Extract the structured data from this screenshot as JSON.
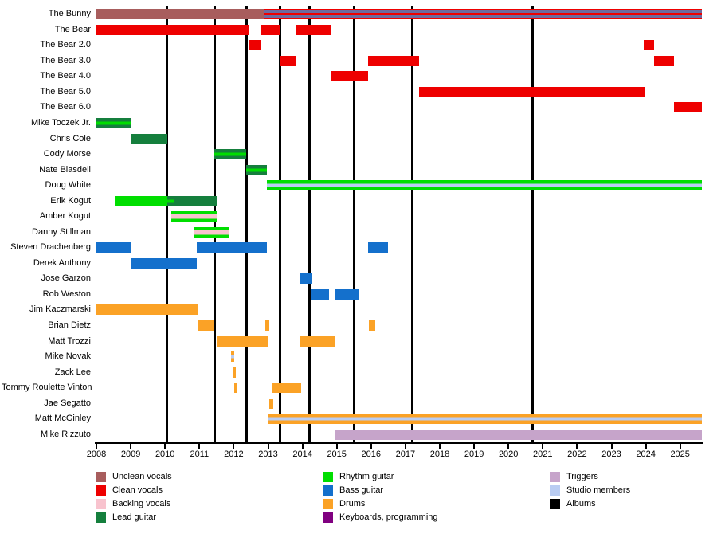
{
  "chart_data": {
    "type": "timeline",
    "description": "Band line-up timeline (Gantt-style) of members and roles over time",
    "x_axis": {
      "start": 2008,
      "end": 2025.64,
      "tick_years": [
        2008,
        2009,
        2010,
        2011,
        2012,
        2013,
        2014,
        2015,
        2016,
        2017,
        2018,
        2019,
        2020,
        2021,
        2022,
        2023,
        2024,
        2025
      ]
    },
    "palette": {
      "unclean": "#A85D5D",
      "clean": "#EE0000",
      "backing": "#F8C3CE",
      "lead": "#157F3D",
      "rhythm": "#00DE00",
      "bass": "#1470CC",
      "drums": "#FBA226",
      "keys": "#800080",
      "triggers": "#C6A4CA",
      "studio": "#B9CCF2",
      "albums": "#000000",
      "slate": "#6E6A9E"
    },
    "styles": {
      "unclean_solid": [
        [
          "unclean",
          1
        ]
      ],
      "clean_solid": [
        [
          "clean",
          1
        ]
      ],
      "bunny_late": [
        [
          "clean",
          0.1
        ],
        [
          "slate",
          0.27
        ],
        [
          "clean",
          0.26
        ],
        [
          "slate",
          0.27
        ],
        [
          "clean",
          0.1
        ]
      ],
      "lead_solid": [
        [
          "lead",
          1
        ]
      ],
      "lead_rhythm": [
        [
          "lead",
          0.36
        ],
        [
          "rhythm",
          0.28
        ],
        [
          "lead",
          0.36
        ]
      ],
      "rhythm_solid": [
        [
          "rhythm",
          1
        ]
      ],
      "rhythm_studio": [
        [
          "rhythm",
          0.36
        ],
        [
          "studio",
          0.28
        ],
        [
          "rhythm",
          0.36
        ]
      ],
      "rhythm_backing": [
        [
          "rhythm",
          0.28
        ],
        [
          "backing",
          0.44
        ],
        [
          "rhythm",
          0.28
        ]
      ],
      "bass_solid": [
        [
          "bass",
          1
        ]
      ],
      "drums_solid": [
        [
          "drums",
          1
        ]
      ],
      "drums_studio": [
        [
          "drums",
          0.36
        ],
        [
          "studio",
          0.28
        ],
        [
          "drums",
          0.36
        ]
      ],
      "triggers_solid": [
        [
          "triggers",
          1
        ]
      ]
    },
    "album_lines_years": [
      2010.05,
      2011.44,
      2012.37,
      2013.34,
      2014.2,
      2015.5,
      2017.19,
      2020.71
    ],
    "members": [
      {
        "name": "The Bunny",
        "bars": [
          [
            2008.0,
            2012.9,
            "unclean_solid"
          ],
          [
            2012.9,
            2025.64,
            "bunny_late"
          ]
        ]
      },
      {
        "name": "The Bear",
        "bars": [
          [
            2008.0,
            2012.44,
            "clean_solid"
          ],
          [
            2012.81,
            2013.34,
            "clean_solid"
          ],
          [
            2013.81,
            2014.85,
            "clean_solid"
          ]
        ]
      },
      {
        "name": "The Bear 2.0",
        "bars": [
          [
            2012.44,
            2012.81,
            "clean_solid"
          ],
          [
            2023.93,
            2024.24,
            "clean_solid"
          ]
        ]
      },
      {
        "name": "The Bear 3.0",
        "bars": [
          [
            2013.34,
            2013.81,
            "clean_solid"
          ],
          [
            2015.92,
            2017.4,
            "clean_solid"
          ],
          [
            2024.24,
            2024.81,
            "clean_solid"
          ]
        ]
      },
      {
        "name": "The Bear 4.0",
        "bars": [
          [
            2014.85,
            2015.92,
            "clean_solid"
          ]
        ]
      },
      {
        "name": "The Bear 5.0",
        "bars": [
          [
            2017.4,
            2023.96,
            "clean_solid"
          ]
        ]
      },
      {
        "name": "The Bear 6.0",
        "bars": [
          [
            2024.81,
            2025.64,
            "clean_solid"
          ]
        ]
      },
      {
        "name": "Mike Toczek Jr.",
        "bars": [
          [
            2008.0,
            2009.0,
            "lead_rhythm"
          ]
        ]
      },
      {
        "name": "Chris Cole",
        "bars": [
          [
            2009.0,
            2010.05,
            "lead_solid"
          ]
        ]
      },
      {
        "name": "Cody Morse",
        "bars": [
          [
            2011.44,
            2012.36,
            "lead_rhythm"
          ]
        ]
      },
      {
        "name": "Nate Blasdell",
        "bars": [
          [
            2012.36,
            2012.96,
            "lead_rhythm"
          ]
        ]
      },
      {
        "name": "Doug White",
        "bars": [
          [
            2012.96,
            2025.64,
            "rhythm_studio"
          ]
        ]
      },
      {
        "name": "Erik Kogut",
        "bars": [
          [
            2008.53,
            2010.05,
            "rhythm_solid"
          ],
          [
            2010.05,
            2010.26,
            "lead_rhythm"
          ],
          [
            2010.26,
            2011.5,
            "lead_solid"
          ]
        ]
      },
      {
        "name": "Amber Kogut",
        "bars": [
          [
            2010.17,
            2011.5,
            "rhythm_backing"
          ]
        ]
      },
      {
        "name": "Danny Stillman",
        "bars": [
          [
            2010.86,
            2011.88,
            "rhythm_backing"
          ]
        ]
      },
      {
        "name": "Steven Drachenberg",
        "bars": [
          [
            2008.0,
            2009.0,
            "bass_solid"
          ],
          [
            2010.92,
            2012.96,
            "bass_solid"
          ],
          [
            2015.92,
            2016.5,
            "bass_solid"
          ]
        ]
      },
      {
        "name": "Derek Anthony",
        "bars": [
          [
            2009.0,
            2010.92,
            "bass_solid"
          ]
        ]
      },
      {
        "name": "Jose Garzon",
        "bars": [
          [
            2013.95,
            2014.28,
            "bass_solid"
          ]
        ]
      },
      {
        "name": "Rob Weston",
        "bars": [
          [
            2014.26,
            2014.77,
            "bass_solid"
          ],
          [
            2014.93,
            2015.66,
            "bass_solid"
          ]
        ]
      },
      {
        "name": "Jim Kaczmarski",
        "bars": [
          [
            2008.0,
            2010.98,
            "drums_solid"
          ]
        ]
      },
      {
        "name": "Brian Dietz",
        "bars": [
          [
            2010.94,
            2011.44,
            "drums_solid"
          ],
          [
            2012.91,
            2013.04,
            "drums_solid"
          ],
          [
            2015.93,
            2016.11,
            "drums_solid"
          ]
        ]
      },
      {
        "name": "Matt Trozzi",
        "bars": [
          [
            2011.5,
            2013.0,
            "drums_solid"
          ],
          [
            2013.93,
            2014.97,
            "drums_solid"
          ]
        ]
      },
      {
        "name": "Mike Novak",
        "bars": [
          [
            2011.93,
            2012.01,
            "drums_studio"
          ]
        ]
      },
      {
        "name": "Zack Lee",
        "bars": [
          [
            2011.99,
            2012.06,
            "drums_solid"
          ]
        ]
      },
      {
        "name": "Tommy Roulette Vinton",
        "bars": [
          [
            2012.02,
            2012.09,
            "drums_solid"
          ],
          [
            2013.11,
            2013.96,
            "drums_solid"
          ]
        ]
      },
      {
        "name": "Jae Segatto",
        "bars": [
          [
            2013.03,
            2013.16,
            "drums_solid"
          ]
        ]
      },
      {
        "name": "Matt McGinley",
        "bars": [
          [
            2012.98,
            2025.64,
            "drums_studio"
          ]
        ]
      },
      {
        "name": "Mike Rizzuto",
        "bars": [
          [
            2014.96,
            2025.64,
            "triggers_solid"
          ]
        ]
      }
    ],
    "legend": {
      "columns": [
        [
          {
            "label": "Unclean vocals",
            "color": "unclean"
          },
          {
            "label": "Clean vocals",
            "color": "clean"
          },
          {
            "label": "Backing vocals",
            "color": "backing"
          },
          {
            "label": "Lead guitar",
            "color": "lead"
          }
        ],
        [
          {
            "label": "Rhythm guitar",
            "color": "rhythm"
          },
          {
            "label": "Bass guitar",
            "color": "bass"
          },
          {
            "label": "Drums",
            "color": "drums"
          },
          {
            "label": "Keyboards, programming",
            "color": "keys"
          }
        ],
        [
          {
            "label": "Triggers",
            "color": "triggers"
          },
          {
            "label": "Studio members",
            "color": "studio"
          },
          {
            "label": "Albums",
            "color": "albums"
          }
        ]
      ]
    }
  }
}
